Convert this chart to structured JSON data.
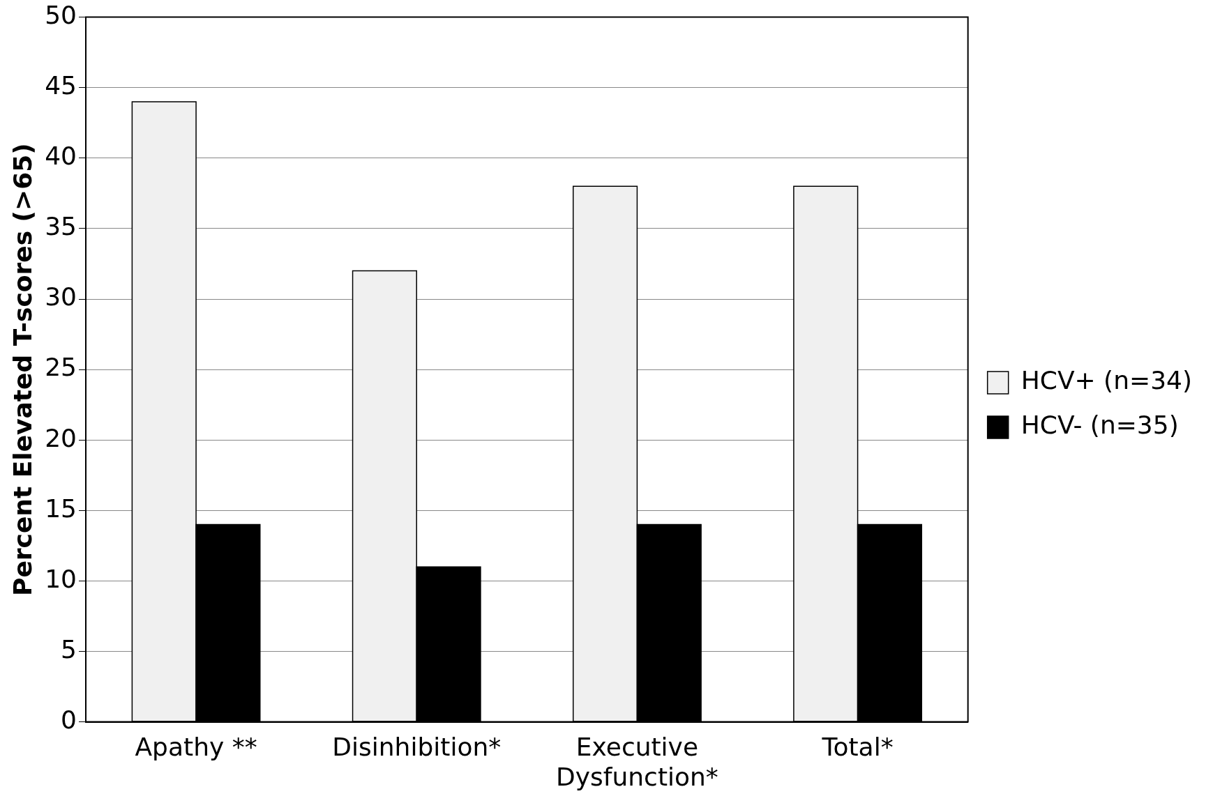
{
  "chart_data": {
    "type": "bar",
    "ylabel": "Percent Elevated T-scores (>65)",
    "categories": [
      "Apathy **",
      "Disinhibition*",
      "Executive Dysfunction*",
      "Total*"
    ],
    "series": [
      {
        "name": "HCV+ (n=34)",
        "color": "#f0f0f0",
        "values": [
          44,
          32,
          38,
          38
        ]
      },
      {
        "name": "HCV- (n=35)",
        "color": "#000000",
        "values": [
          14,
          11,
          14,
          14
        ]
      }
    ],
    "ylim": [
      0,
      50
    ],
    "yticks": [
      0,
      5,
      10,
      15,
      20,
      25,
      30,
      35,
      40,
      45,
      50
    ],
    "grid": "y",
    "legend": "right"
  }
}
